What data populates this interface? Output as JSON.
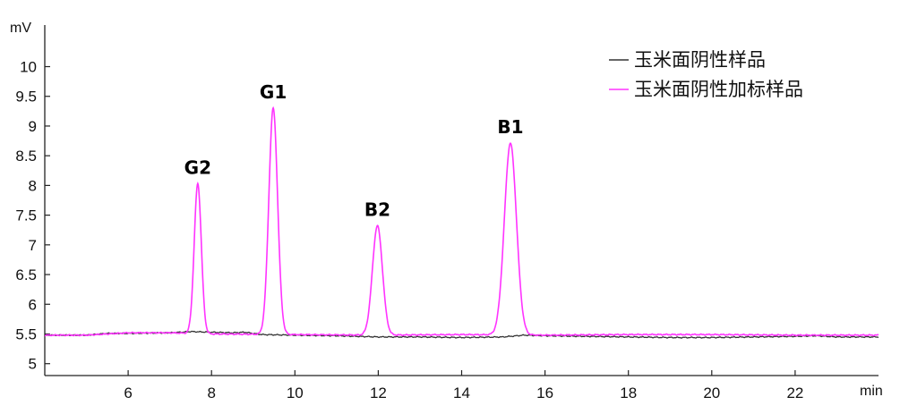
{
  "chart_data": {
    "type": "line",
    "xlabel": "min",
    "ylabel": "mV",
    "xlim": [
      4.0,
      24.0
    ],
    "ylim": [
      4.8,
      10.7
    ],
    "x_ticks": [
      6,
      8,
      10,
      12,
      14,
      16,
      18,
      20,
      22
    ],
    "x_tick_labels": [
      "6",
      "8",
      "10",
      "12",
      "14",
      "16",
      "18",
      "20",
      "22"
    ],
    "y_ticks": [
      5,
      5.5,
      6,
      6.5,
      7,
      7.5,
      8,
      8.5,
      9,
      9.5,
      10
    ],
    "y_tick_labels": [
      "5",
      "5.5",
      "6",
      "6.5",
      "7",
      "7.5",
      "8",
      "8.5",
      "9",
      "9.5",
      "10"
    ],
    "grid": false,
    "legend_position": "top-right",
    "series": [
      {
        "name": "玉米面阴性样品",
        "color": "#333333",
        "x": [
          4.0,
          5.0,
          5.5,
          6.0,
          7.0,
          7.5,
          8.0,
          8.5,
          8.8,
          9.2,
          10.0,
          11.0,
          12.0,
          13.0,
          14.0,
          15.0,
          15.5,
          16.0,
          17.0,
          18.0,
          19.0,
          20.0,
          21.0,
          22.0,
          22.5,
          23.0,
          24.0
        ],
        "y": [
          5.48,
          5.48,
          5.51,
          5.51,
          5.52,
          5.54,
          5.53,
          5.52,
          5.53,
          5.49,
          5.48,
          5.47,
          5.45,
          5.45,
          5.44,
          5.45,
          5.48,
          5.47,
          5.46,
          5.45,
          5.44,
          5.44,
          5.45,
          5.46,
          5.47,
          5.45,
          5.45
        ]
      },
      {
        "name": "玉米面阴性加标样品",
        "color": "#ff33ff",
        "baseline": [
          [
            4.0,
            5.48
          ],
          [
            5.0,
            5.48
          ],
          [
            5.5,
            5.5
          ],
          [
            6.0,
            5.52
          ],
          [
            7.0,
            5.52
          ],
          [
            8.0,
            5.5
          ],
          [
            10.0,
            5.49
          ],
          [
            12.0,
            5.48
          ],
          [
            14.0,
            5.49
          ],
          [
            16.0,
            5.48
          ],
          [
            18.0,
            5.49
          ],
          [
            20.0,
            5.49
          ],
          [
            22.0,
            5.48
          ],
          [
            24.0,
            5.48
          ]
        ],
        "peaks": [
          {
            "label": "G2",
            "x": 7.67,
            "y": 8.03
          },
          {
            "label": "G1",
            "x": 9.48,
            "y": 9.3
          },
          {
            "label": "B2",
            "x": 11.98,
            "y": 7.32
          },
          {
            "label": "B1",
            "x": 15.17,
            "y": 8.71
          }
        ]
      }
    ]
  }
}
